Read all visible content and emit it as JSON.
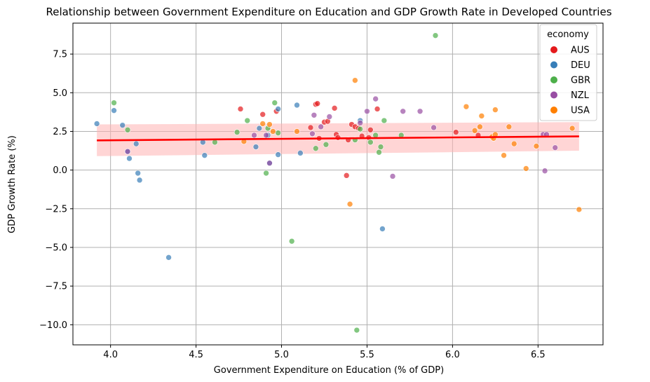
{
  "chart_data": {
    "type": "scatter",
    "title": "Relationship between Government Expenditure on Education and GDP Growth Rate in Developed Countries",
    "xlabel": "Government Expenditure on Education (% of GDP)",
    "ylabel": "GDP Growth Rate (%)",
    "xlim": [
      3.78,
      6.88
    ],
    "ylim": [
      -11.3,
      9.5
    ],
    "xticks": [
      4.0,
      4.5,
      5.0,
      5.5,
      6.0,
      6.5
    ],
    "xtick_labels": [
      "4.0",
      "4.5",
      "5.0",
      "5.5",
      "6.0",
      "6.5"
    ],
    "yticks": [
      -10.0,
      -7.5,
      -5.0,
      -2.5,
      0.0,
      2.5,
      5.0,
      7.5
    ],
    "ytick_labels": [
      "−10.0",
      "−7.5",
      "−5.0",
      "−2.5",
      "0.0",
      "2.5",
      "5.0",
      "7.5"
    ],
    "grid": true,
    "legend": {
      "title": "economy",
      "placement": "top-right",
      "entries": [
        {
          "name": "AUS",
          "color": "#e41a1c"
        },
        {
          "name": "DEU",
          "color": "#377eb8"
        },
        {
          "name": "GBR",
          "color": "#4daf4a"
        },
        {
          "name": "NZL",
          "color": "#984ea3"
        },
        {
          "name": "USA",
          "color": "#ff7f00"
        }
      ]
    },
    "regression": {
      "color": "#ff0000",
      "ci_color": "#ffb3b3",
      "x_range": [
        3.92,
        6.74
      ],
      "line": [
        1.92,
        2.18
      ],
      "ci_lower": [
        0.9,
        1.25
      ],
      "ci_upper": [
        2.95,
        3.1
      ]
    },
    "series": [
      {
        "name": "AUS",
        "color": "#e41a1c",
        "points": [
          [
            4.76,
            3.95
          ],
          [
            4.89,
            3.6
          ],
          [
            4.97,
            3.8
          ],
          [
            5.17,
            2.75
          ],
          [
            5.2,
            4.25
          ],
          [
            5.21,
            4.3
          ],
          [
            5.22,
            2.05
          ],
          [
            5.25,
            3.1
          ],
          [
            5.27,
            3.15
          ],
          [
            5.31,
            4.0
          ],
          [
            5.32,
            2.3
          ],
          [
            5.33,
            2.1
          ],
          [
            5.38,
            -0.35
          ],
          [
            5.39,
            1.95
          ],
          [
            5.41,
            2.95
          ],
          [
            5.43,
            2.8
          ],
          [
            5.45,
            2.7
          ],
          [
            5.47,
            2.2
          ],
          [
            5.51,
            2.1
          ],
          [
            5.52,
            2.6
          ],
          [
            5.56,
            3.95
          ],
          [
            6.02,
            2.45
          ],
          [
            6.15,
            2.25
          ]
        ]
      },
      {
        "name": "DEU",
        "color": "#377eb8",
        "points": [
          [
            3.92,
            3.0
          ],
          [
            4.02,
            3.85
          ],
          [
            4.07,
            2.9
          ],
          [
            4.1,
            1.2
          ],
          [
            4.11,
            0.75
          ],
          [
            4.15,
            1.7
          ],
          [
            4.16,
            -0.2
          ],
          [
            4.17,
            -0.65
          ],
          [
            4.34,
            -5.65
          ],
          [
            4.54,
            1.8
          ],
          [
            4.55,
            0.95
          ],
          [
            4.85,
            1.5
          ],
          [
            4.87,
            2.7
          ],
          [
            4.92,
            2.25
          ],
          [
            4.93,
            0.45
          ],
          [
            4.98,
            1.0
          ],
          [
            4.98,
            3.95
          ],
          [
            5.09,
            4.2
          ],
          [
            5.11,
            1.1
          ],
          [
            5.46,
            3.2
          ],
          [
            5.59,
            -3.8
          ]
        ]
      },
      {
        "name": "GBR",
        "color": "#4daf4a",
        "points": [
          [
            4.02,
            4.35
          ],
          [
            4.1,
            2.6
          ],
          [
            4.61,
            1.8
          ],
          [
            4.74,
            2.45
          ],
          [
            4.8,
            3.2
          ],
          [
            4.91,
            -0.2
          ],
          [
            4.92,
            2.7
          ],
          [
            4.96,
            4.35
          ],
          [
            4.98,
            2.4
          ],
          [
            5.06,
            -4.6
          ],
          [
            5.2,
            1.4
          ],
          [
            5.26,
            1.65
          ],
          [
            5.43,
            1.95
          ],
          [
            5.44,
            -10.35
          ],
          [
            5.46,
            2.65
          ],
          [
            5.52,
            1.8
          ],
          [
            5.55,
            2.25
          ],
          [
            5.57,
            1.15
          ],
          [
            5.58,
            1.5
          ],
          [
            5.6,
            3.2
          ],
          [
            5.7,
            2.25
          ],
          [
            5.9,
            8.7
          ]
        ]
      },
      {
        "name": "NZL",
        "color": "#984ea3",
        "points": [
          [
            4.1,
            1.2
          ],
          [
            4.84,
            2.25
          ],
          [
            4.91,
            2.25
          ],
          [
            4.93,
            0.45
          ],
          [
            5.18,
            2.35
          ],
          [
            5.19,
            3.55
          ],
          [
            5.23,
            2.8
          ],
          [
            5.28,
            3.45
          ],
          [
            5.46,
            3.05
          ],
          [
            5.5,
            3.8
          ],
          [
            5.55,
            4.6
          ],
          [
            5.65,
            -0.4
          ],
          [
            5.71,
            3.8
          ],
          [
            5.81,
            3.8
          ],
          [
            5.89,
            2.75
          ],
          [
            6.53,
            2.3
          ],
          [
            6.54,
            -0.05
          ],
          [
            6.55,
            2.3
          ],
          [
            6.6,
            1.45
          ]
        ]
      },
      {
        "name": "USA",
        "color": "#ff7f00",
        "points": [
          [
            4.78,
            1.85
          ],
          [
            4.89,
            3.0
          ],
          [
            4.93,
            2.95
          ],
          [
            4.95,
            2.5
          ],
          [
            5.09,
            2.5
          ],
          [
            5.4,
            -2.2
          ],
          [
            5.43,
            5.8
          ],
          [
            6.08,
            4.1
          ],
          [
            6.13,
            2.55
          ],
          [
            6.16,
            2.8
          ],
          [
            6.17,
            3.5
          ],
          [
            6.23,
            2.15
          ],
          [
            6.24,
            2.05
          ],
          [
            6.25,
            2.3
          ],
          [
            6.25,
            3.9
          ],
          [
            6.3,
            0.95
          ],
          [
            6.33,
            2.8
          ],
          [
            6.36,
            1.7
          ],
          [
            6.43,
            0.1
          ],
          [
            6.49,
            1.55
          ],
          [
            6.7,
            2.7
          ],
          [
            6.74,
            -2.55
          ]
        ]
      }
    ]
  }
}
